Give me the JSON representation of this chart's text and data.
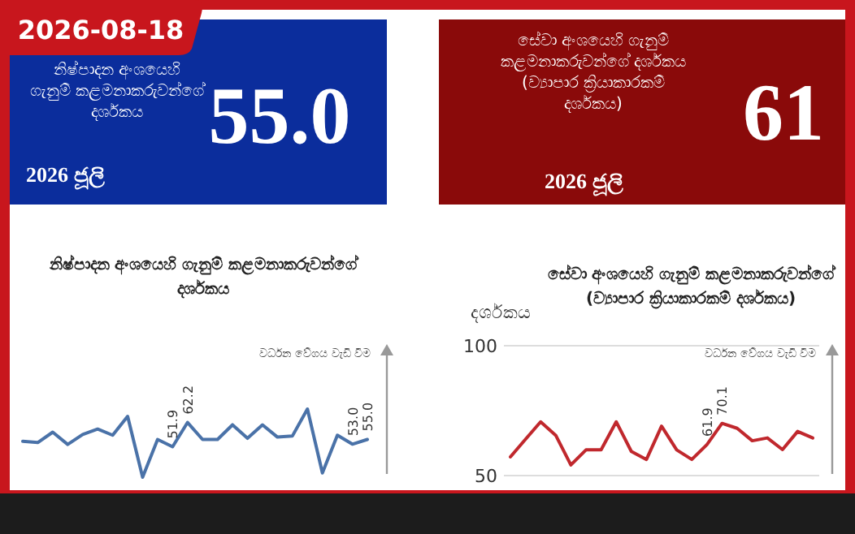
{
  "chart_data": [
    {
      "type": "other",
      "title": "නිෂ්පාදන අංශයෙහි ගැනුම් කළමනාකරුවන්ගේ දර්ශකය",
      "subtitle": "2026-08-18",
      "annotations": [
        "55.0",
        "2026 ජූලි"
      ],
      "color": "#0b2d9c"
    },
    {
      "type": "other",
      "title": "සේවා අංශයෙහි ගැනුම් කළමනාකරුවන්ගේ දර්ශකය (ව්‍යාපාර ක්‍රියාකාරකම් දර්ශකය)",
      "annotations": [
        "61",
        "2026 ජූලි"
      ],
      "color": "#8a0a0a"
    },
    {
      "type": "line",
      "title": "නිෂ්පාදන අංශයෙහි ගැනුම් කළමනාකරුවන්ගේ දර්ශකය",
      "annotations": [
        "වර්ධන වේගය වැඩි වීම"
      ],
      "categories": [
        null,
        null,
        null,
        null,
        null,
        null,
        null,
        null,
        null,
        null,
        null,
        null,
        null,
        null,
        null,
        null,
        null,
        null,
        null,
        null,
        null,
        null,
        null,
        null
      ],
      "series": [
        {
          "color": "#4a72a8",
          "values": [
            54.2,
            53.7,
            58.1,
            52.9,
            57.1,
            59.4,
            56.8,
            64.8,
            39.0,
            55.0,
            51.9,
            62.2,
            55.0,
            55.0,
            61.2,
            55.5,
            61.2,
            56.0,
            56.5,
            67.9,
            40.8,
            56.8,
            53.0,
            55.0
          ],
          "value_labels": [
            null,
            null,
            null,
            null,
            null,
            null,
            null,
            null,
            null,
            null,
            "51.9",
            "62.2",
            null,
            null,
            null,
            null,
            null,
            null,
            null,
            null,
            null,
            null,
            "53.0",
            "55.0"
          ]
        }
      ]
    },
    {
      "type": "line",
      "title": "සේවා අංශයෙහි ගැනුම් කළමනාකරුවන්ගේ (ව්‍යාපාර ක්‍රියාකාරකම් දර්ශකය)",
      "ylabel": "දර්ශකය",
      "annotations": [
        "වර්ධන වේගය වැඩි වීම"
      ],
      "ylim": [
        50,
        100
      ],
      "yticks": [
        50,
        100
      ],
      "grid": "y",
      "categories": [
        null,
        null,
        null,
        null,
        null,
        null,
        null,
        null,
        null,
        null,
        null,
        null,
        null,
        null,
        null,
        null,
        null,
        null,
        null,
        null,
        null
      ],
      "series": [
        {
          "color": "#c0282d",
          "values": [
            57.2,
            64.0,
            70.7,
            65.5,
            54.1,
            59.9,
            59.9,
            70.7,
            59.3,
            56.2,
            69.0,
            59.9,
            56.2,
            61.9,
            70.1,
            68.2,
            63.4,
            64.5,
            60.0,
            67.0,
            64.5
          ],
          "value_labels": [
            null,
            null,
            null,
            null,
            null,
            null,
            null,
            null,
            null,
            null,
            null,
            null,
            null,
            "61.9",
            "70.1",
            null,
            null,
            null,
            null,
            null,
            null
          ]
        }
      ]
    }
  ]
}
